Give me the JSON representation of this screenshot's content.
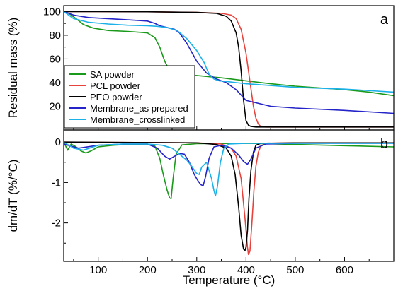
{
  "chart_data": [
    {
      "type": "line",
      "panel_label": "a",
      "xlabel": "",
      "ylabel": "Residual mass (%)",
      "xlim": [
        30,
        700
      ],
      "ylim": [
        0,
        105
      ],
      "xticks": [
        100,
        200,
        300,
        400,
        500,
        600
      ],
      "yticks": [
        20,
        40,
        60,
        80,
        100
      ],
      "ytick_labels": [
        "20",
        "40",
        "60",
        "80",
        "100"
      ],
      "legend": "bottom-left",
      "series": [
        {
          "name": "SA powder",
          "color": "#1a9a1a",
          "x": [
            30,
            40,
            55,
            70,
            90,
            120,
            160,
            200,
            215,
            225,
            235,
            245,
            255,
            265,
            280,
            300,
            350,
            400,
            450,
            500,
            550,
            600,
            650,
            700
          ],
          "y": [
            100,
            98.5,
            94,
            89,
            86,
            84,
            83.2,
            82,
            78,
            70,
            58,
            50,
            48,
            47.5,
            46.8,
            46,
            44,
            41.5,
            39,
            37,
            35.5,
            34,
            32,
            29
          ]
        },
        {
          "name": "PCL powder",
          "color": "#e8423c",
          "x": [
            30,
            100,
            200,
            300,
            350,
            370,
            380,
            390,
            400,
            405,
            410,
            415,
            420,
            425,
            430,
            440,
            500,
            600,
            700
          ],
          "y": [
            100,
            100,
            99.8,
            99.3,
            98.5,
            97,
            94,
            85,
            65,
            50,
            35,
            20,
            10,
            5,
            3,
            2.5,
            2.5,
            2.5,
            2.5
          ]
        },
        {
          "name": "PEO powder",
          "color": "#000000",
          "x": [
            30,
            100,
            200,
            300,
            340,
            360,
            370,
            380,
            385,
            390,
            395,
            400,
            405,
            410,
            420,
            430,
            500,
            600,
            700
          ],
          "y": [
            100,
            100,
            99.8,
            99.3,
            98.5,
            96,
            92,
            82,
            70,
            50,
            25,
            8,
            4,
            3,
            2.5,
            2.5,
            2.5,
            2.5,
            2.5
          ]
        },
        {
          "name": "Membrane_as prepared",
          "color": "#2424c8",
          "x": [
            30,
            50,
            80,
            120,
            160,
            200,
            215,
            225,
            235,
            245,
            255,
            265,
            280,
            300,
            320,
            340,
            360,
            380,
            400,
            450,
            500,
            600,
            700
          ],
          "y": [
            100,
            97,
            95,
            94,
            93,
            92,
            90,
            88,
            87,
            86,
            85,
            82,
            73,
            58,
            48,
            43,
            40,
            34,
            25,
            20,
            18.5,
            16.5,
            14
          ]
        },
        {
          "name": "Membrane_crosslinked",
          "color": "#1ab0e8",
          "x": [
            30,
            50,
            80,
            120,
            160,
            200,
            220,
            240,
            260,
            280,
            300,
            315,
            325,
            335,
            345,
            360,
            380,
            400,
            450,
            500,
            600,
            700
          ],
          "y": [
            100,
            94,
            91,
            89.5,
            88.5,
            88,
            87.5,
            86.5,
            84,
            77,
            67,
            57,
            47,
            43,
            41.5,
            41,
            40,
            39,
            37.5,
            36,
            34.5,
            32
          ]
        }
      ]
    },
    {
      "type": "line",
      "panel_label": "b",
      "xlabel": "Temperature (°C)",
      "ylabel": "dm/dT (%/°C)",
      "xlim": [
        30,
        700
      ],
      "ylim": [
        -2.95,
        0.3
      ],
      "xticks": [
        100,
        200,
        300,
        400,
        500,
        600
      ],
      "xtick_labels": [
        "100",
        "200",
        "300",
        "400",
        "500",
        "600"
      ],
      "yticks": [
        0,
        -1,
        -2
      ],
      "ytick_labels": [
        "0",
        "-1",
        "-2"
      ],
      "series": [
        {
          "name": "SA powder",
          "color": "#1a9a1a",
          "x": [
            30,
            38,
            45,
            55,
            65,
            75,
            85,
            100,
            130,
            160,
            200,
            215,
            225,
            232,
            240,
            245,
            248,
            252,
            258,
            270,
            300,
            400,
            500,
            600,
            700
          ],
          "y": [
            0,
            -0.2,
            -0.05,
            -0.12,
            -0.22,
            -0.27,
            -0.22,
            -0.12,
            -0.08,
            -0.06,
            -0.05,
            -0.1,
            -0.4,
            -0.8,
            -1.2,
            -1.38,
            -1.4,
            -0.9,
            -0.3,
            -0.07,
            -0.04,
            -0.03,
            -0.06,
            -0.09,
            -0.12
          ]
        },
        {
          "name": "PCL powder",
          "color": "#e8423c",
          "x": [
            30,
            300,
            350,
            370,
            380,
            390,
            398,
            403,
            405,
            408,
            412,
            416,
            420,
            425,
            430,
            440,
            500,
            700
          ],
          "y": [
            0,
            -0.02,
            -0.05,
            -0.15,
            -0.35,
            -0.9,
            -1.9,
            -2.6,
            -2.78,
            -2.7,
            -2.0,
            -1.2,
            -0.6,
            -0.25,
            -0.1,
            -0.03,
            -0.02,
            -0.02
          ]
        },
        {
          "name": "PEO powder",
          "color": "#000000",
          "x": [
            30,
            300,
            340,
            360,
            370,
            378,
            385,
            390,
            395,
            398,
            400,
            403,
            406,
            410,
            415,
            420,
            430,
            500,
            700
          ],
          "y": [
            0,
            -0.02,
            -0.06,
            -0.15,
            -0.35,
            -0.8,
            -1.6,
            -2.3,
            -2.65,
            -2.68,
            -2.6,
            -2.2,
            -1.4,
            -0.7,
            -0.25,
            -0.08,
            -0.03,
            -0.02,
            -0.02
          ]
        },
        {
          "name": "Membrane_as prepared",
          "color": "#2424c8",
          "x": [
            30,
            60,
            100,
            150,
            200,
            220,
            235,
            245,
            255,
            265,
            275,
            285,
            295,
            302,
            308,
            313,
            318,
            325,
            335,
            350,
            370,
            385,
            395,
            403,
            410,
            420,
            440,
            500,
            600,
            700
          ],
          "y": [
            -0.05,
            -0.15,
            -0.08,
            -0.05,
            -0.05,
            -0.15,
            -0.35,
            -0.42,
            -0.35,
            -0.28,
            -0.3,
            -0.5,
            -0.8,
            -0.95,
            -1.05,
            -1.08,
            -0.85,
            -0.4,
            -0.12,
            -0.08,
            -0.15,
            -0.32,
            -0.48,
            -0.55,
            -0.42,
            -0.15,
            -0.05,
            -0.03,
            -0.03,
            -0.03
          ]
        },
        {
          "name": "Membrane_crosslinked",
          "color": "#1ab0e8",
          "x": [
            30,
            50,
            70,
            100,
            150,
            200,
            230,
            250,
            260,
            270,
            280,
            290,
            300,
            305,
            310,
            320,
            330,
            335,
            338,
            342,
            348,
            355,
            365,
            400,
            500,
            600,
            700
          ],
          "y": [
            0,
            -0.15,
            -0.2,
            -0.08,
            -0.05,
            -0.05,
            -0.08,
            -0.15,
            -0.25,
            -0.35,
            -0.45,
            -0.6,
            -0.78,
            -0.8,
            -0.62,
            -0.5,
            -0.9,
            -1.2,
            -1.33,
            -1.1,
            -0.5,
            -0.15,
            -0.05,
            -0.03,
            -0.03,
            -0.03,
            -0.03
          ]
        }
      ]
    }
  ]
}
